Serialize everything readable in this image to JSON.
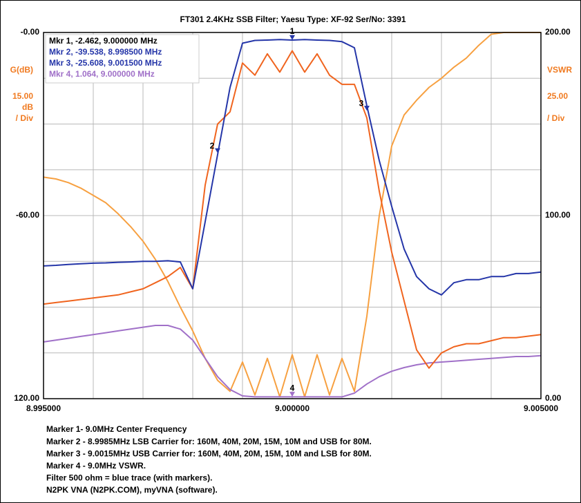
{
  "chart_data": {
    "type": "line",
    "title": "FT301 2.4KHz SSB Filter; Yaesu Type: XF-92 Ser/No: 3391",
    "x": [
      8.995,
      8.99525,
      8.9955,
      8.99575,
      8.996,
      8.99625,
      8.9965,
      8.99675,
      8.997,
      8.99725,
      8.9975,
      8.99775,
      8.998,
      8.99825,
      8.9985,
      8.99875,
      8.999,
      8.99925,
      8.9995,
      8.99975,
      9.0,
      9.00025,
      9.0005,
      9.00075,
      9.001,
      9.00125,
      9.0015,
      9.00175,
      9.002,
      9.00225,
      9.0025,
      9.00275,
      9.003,
      9.00325,
      9.0035,
      9.00375,
      9.004,
      9.00425,
      9.0045,
      9.00475,
      9.005
    ],
    "xlim": [
      8.995,
      9.005
    ],
    "xticks": [
      {
        "value": 8.995,
        "label": "8.995000"
      },
      {
        "value": 9.0,
        "label": "9.000000"
      },
      {
        "value": 9.005,
        "label": "9.005000"
      }
    ],
    "xgrid": [
      8.995,
      8.996,
      8.997,
      8.998,
      8.999,
      9.0,
      9.001,
      9.002,
      9.003,
      9.004,
      9.005
    ],
    "ylim": [
      -120,
      0
    ],
    "yticks": [
      {
        "value": 0,
        "label": "-0.00"
      },
      {
        "value": -60,
        "label": "-60.00"
      },
      {
        "value": -120,
        "label": "120.00"
      }
    ],
    "ygrid": [
      0,
      -15,
      -30,
      -45,
      -60,
      -75,
      -90,
      -105,
      -120
    ],
    "y_label": "G(dB)",
    "y_scale": "15.00",
    "y_unit": "dB",
    "y_div": "/ Div",
    "y2lim": [
      0,
      200
    ],
    "y2ticks": [
      {
        "value": 0,
        "label": "0.00"
      },
      {
        "value": 100,
        "label": "100.00"
      },
      {
        "value": 200,
        "label": "200.00"
      }
    ],
    "y2_label": "VSWR",
    "y2_scale": "25.00",
    "y2_div": "/ Div",
    "axis_color": "#f07a20",
    "series": [
      {
        "color": "#2435a8",
        "values": [
          -76.5,
          -76.3,
          -76,
          -75.8,
          -75.6,
          -75.5,
          -75.3,
          -75.2,
          -75,
          -75,
          -74.8,
          -75.2,
          -84,
          -62,
          -40,
          -18,
          -3.5,
          -2.6,
          -2.5,
          -2.3,
          -2.5,
          -2.3,
          -2.5,
          -2.6,
          -3,
          -5,
          -24,
          -42,
          -57,
          -71,
          -80,
          -84,
          -86,
          -82,
          -81,
          -81,
          -80,
          -80,
          -79,
          -79,
          -78.5
        ]
      },
      {
        "color": "#f0641e",
        "values": [
          -89,
          -88.5,
          -88,
          -87.5,
          -87,
          -86.5,
          -86,
          -85,
          -84,
          -82,
          -80,
          -77,
          -84,
          -50,
          -30,
          -26,
          -10,
          -14,
          -7,
          -13,
          -6,
          -13,
          -7,
          -14,
          -17,
          -17,
          -28,
          -52,
          -72,
          -88,
          -104,
          -110,
          -105,
          -103,
          -102,
          -102,
          -101,
          -100,
          -100,
          -99.5,
          -99
        ]
      },
      {
        "color": "#f7a040",
        "axis": "y2",
        "values": [
          121,
          120,
          118,
          115,
          111,
          107,
          101,
          94,
          86,
          76,
          64,
          50,
          37,
          22,
          10,
          4,
          20,
          2,
          22,
          1,
          24,
          1,
          24,
          2,
          22,
          4,
          45,
          100,
          138,
          155,
          163,
          170,
          175,
          181,
          186,
          193,
          199,
          200,
          200,
          200,
          200
        ]
      },
      {
        "color": "#a070c8",
        "axis": "y2",
        "values": [
          31,
          32,
          33,
          34,
          35,
          36,
          37,
          38,
          39,
          40,
          40,
          38,
          32,
          22,
          12,
          5,
          1.5,
          1,
          1,
          1,
          1,
          1,
          1,
          1,
          1,
          3,
          8,
          12,
          15,
          17,
          18.5,
          19.5,
          20,
          20.5,
          21,
          21.5,
          22,
          22.5,
          23,
          23,
          23.5
        ]
      }
    ],
    "markers": [
      {
        "label": "1",
        "text": "Mkr 1, -2.462, 9.000000 MHz",
        "x": 9.0,
        "y": -2.462,
        "color": "#000000",
        "mark_color": "#2435a8"
      },
      {
        "label": "2",
        "text": "Mkr 2, -39.538, 8.998500 MHz",
        "x": 8.9985,
        "y": -39.538,
        "color": "#2435a8",
        "mark_color": "#2435a8"
      },
      {
        "label": "3",
        "text": "Mkr 3, -25.608, 9.001500 MHz",
        "x": 9.0015,
        "y": -25.608,
        "color": "#2435a8",
        "mark_color": "#2435a8"
      },
      {
        "label": "4",
        "text": "Mkr 4, 1.064, 9.000000 MHz",
        "x": 9.0,
        "y": 1.064,
        "axis": "y2",
        "color": "#a070c8",
        "mark_color": "#a070c8"
      }
    ],
    "notes": [
      "Marker 1- 9.0MHz Center Frequency",
      "Marker 2 - 8.9985MHz LSB Carrier for: 160M, 40M, 20M, 15M, 10M and USB for 80M.",
      "Marker 3 - 9.0015MHz USB Carrier for: 160M, 40M, 20M, 15M, 10M and LSB for 80M.",
      "Marker 4 - 9.0MHz VSWR.",
      "Filter 500 ohm = blue trace (with markers).",
      "N2PK VNA (N2PK.COM), myVNA (software)."
    ]
  }
}
